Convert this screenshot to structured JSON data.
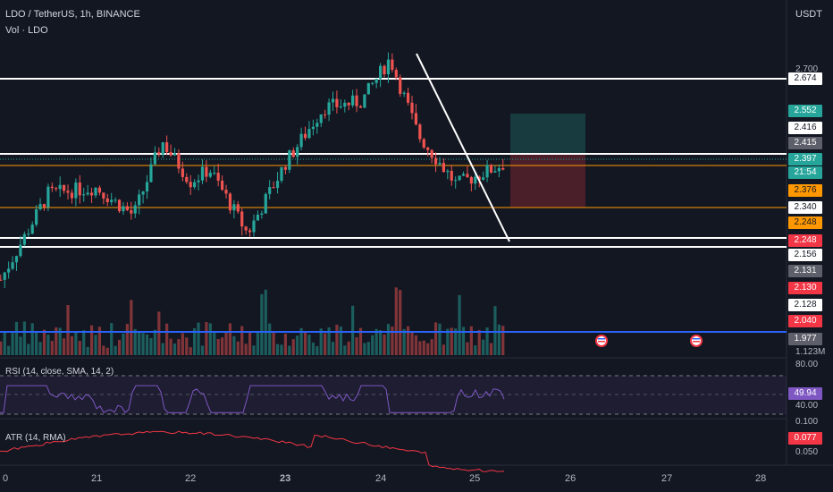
{
  "header": {
    "symbol": "LDO / TetherUS, 1h, BINANCE",
    "volume": "Vol · LDO",
    "currency": "USDT"
  },
  "indicators": {
    "rsi_label": "RSI (14, close, SMA, 14, 2)",
    "atr_label": "ATR (14, RMA)",
    "rsi_value": "49.94",
    "atr_value": "0.077"
  },
  "price_labels": [
    {
      "text": "2.674",
      "bg": "#ffffff",
      "fg": "#131722"
    },
    {
      "text": "2.552",
      "bg": "#26a69a",
      "fg": "#ffffff"
    },
    {
      "text": "2.416",
      "bg": "#ffffff",
      "fg": "#131722"
    },
    {
      "text": "2.415",
      "bg": "#5d606b",
      "fg": "#ffffff"
    },
    {
      "text": "2.397",
      "bg": "#26a69a",
      "fg": "#ffffff"
    },
    {
      "text": "21:54",
      "bg": "#26a69a",
      "fg": "#ffffff"
    },
    {
      "text": "2.376",
      "bg": "#ff9800",
      "fg": "#131722"
    },
    {
      "text": "2.340",
      "bg": "#ffffff",
      "fg": "#131722"
    },
    {
      "text": "2.248",
      "bg": "#ff9800",
      "fg": "#131722"
    },
    {
      "text": "2.248",
      "bg": "#f23645",
      "fg": "#ffffff"
    },
    {
      "text": "2.156",
      "bg": "#ffffff",
      "fg": "#131722"
    },
    {
      "text": "2.131",
      "bg": "#5d606b",
      "fg": "#ffffff"
    },
    {
      "text": "2.130",
      "bg": "#f23645",
      "fg": "#ffffff"
    },
    {
      "text": "2.128",
      "bg": "#ffffff",
      "fg": "#131722"
    },
    {
      "text": "2.040",
      "bg": "#f23645",
      "fg": "#ffffff"
    },
    {
      "text": "1.977",
      "bg": "#5d606b",
      "fg": "#ffffff"
    }
  ],
  "scale_ticks": {
    "price_partial_top": "2.700",
    "volume_partial": "1.123M",
    "rsi_top": "80.00",
    "rsi_bottom": "40.00",
    "atr_top": "0.100",
    "atr_bottom": "0.050"
  },
  "dates": [
    "21",
    "22",
    "23",
    "24",
    "25",
    "26",
    "27",
    "28"
  ],
  "colors": {
    "background": "#131722",
    "up": "#26a69a",
    "down": "#ef5350",
    "rsi": "#7e57c2",
    "atr": "#f23645",
    "support": "#ffffff",
    "orange": "#ff9800",
    "blue": "#2962ff"
  },
  "chart_data": {
    "type": "candlestick",
    "symbol": "LDO / TetherUS",
    "interval": "1h",
    "exchange": "BINANCE",
    "last_price": 2.397,
    "horizontal_levels": [
      2.674,
      2.416,
      2.397,
      2.376,
      2.34,
      2.156,
      2.128,
      1.977
    ],
    "position_tool": {
      "entry": 2.397,
      "take_profit": 2.552,
      "stop_loss": 2.34
    },
    "trendline": {
      "from_price": 2.82,
      "to_price": 2.15
    },
    "close_path": [
      {
        "date": "20",
        "close": 2.02
      },
      {
        "date": "20.5",
        "close": 2.3
      },
      {
        "date": "21",
        "close": 2.32
      },
      {
        "date": "21.4",
        "close": 2.23
      },
      {
        "date": "21.7",
        "close": 2.47
      },
      {
        "date": "22",
        "close": 2.34
      },
      {
        "date": "22.2",
        "close": 2.38
      },
      {
        "date": "22.6",
        "close": 2.17
      },
      {
        "date": "23",
        "close": 2.4
      },
      {
        "date": "23.4",
        "close": 2.58
      },
      {
        "date": "23.8",
        "close": 2.6
      },
      {
        "date": "24.1",
        "close": 2.74
      },
      {
        "date": "24.4",
        "close": 2.49
      },
      {
        "date": "24.8",
        "close": 2.33
      },
      {
        "date": "25.3",
        "close": 2.397
      }
    ],
    "rsi": {
      "value": 49.94,
      "range": [
        40,
        80
      ]
    },
    "atr": {
      "value": 0.077,
      "range": [
        0.05,
        0.1
      ]
    }
  }
}
